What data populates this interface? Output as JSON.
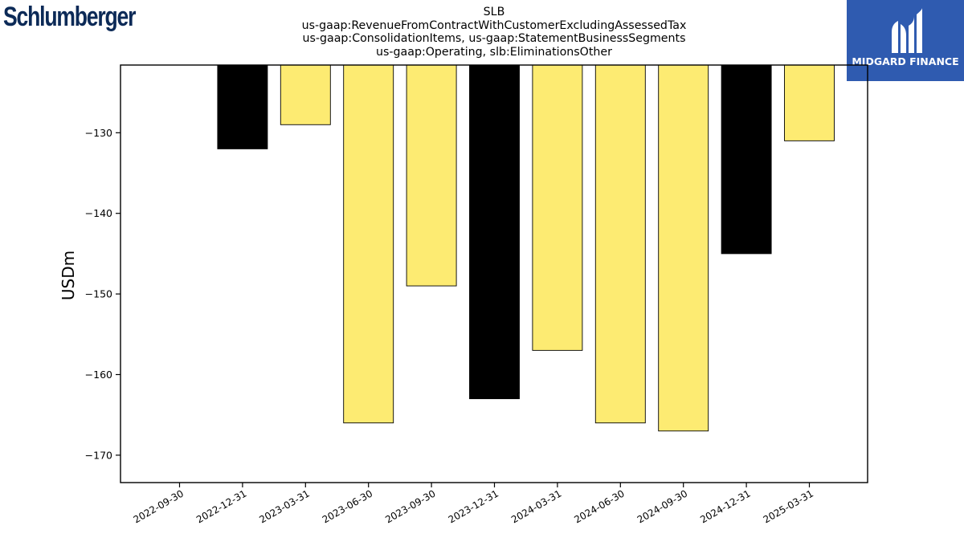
{
  "logos": {
    "left_text": "Schlumberger",
    "right_text": "MIDGARD FINANCE",
    "left_color": "#0c2a57",
    "right_bg": "#2f5bb0"
  },
  "chart_data": {
    "type": "bar",
    "title_lines": [
      "SLB",
      "us-gaap:RevenueFromContractWithCustomerExcludingAssessedTax",
      "us-gaap:ConsolidationItems, us-gaap:StatementBusinessSegments",
      "us-gaap:Operating, slb:EliminationsOther"
    ],
    "ylabel": "USDm",
    "xlabel": "",
    "categories": [
      "2022-09-30",
      "2022-12-31",
      "2023-03-31",
      "2023-06-30",
      "2023-09-30",
      "2023-12-31",
      "2024-03-31",
      "2024-06-30",
      "2024-09-30",
      "2024-12-31",
      "2025-03-31"
    ],
    "values": [
      null,
      -132,
      -129,
      -166,
      -149,
      -163,
      -157,
      -166,
      -167,
      -145,
      -131
    ],
    "bar_colors": [
      null,
      "#000000",
      "#fdeb72",
      "#fdeb72",
      "#fdeb72",
      "#000000",
      "#fdeb72",
      "#fdeb72",
      "#fdeb72",
      "#000000",
      "#fdeb72"
    ],
    "ylim": [
      -173.4,
      -121.6
    ],
    "yticks": [
      -130,
      -140,
      -150,
      -160,
      -170
    ],
    "ytick_labels": [
      "−130",
      "−140",
      "−150",
      "−160",
      "−170"
    ],
    "grid": false,
    "legend": "none"
  }
}
